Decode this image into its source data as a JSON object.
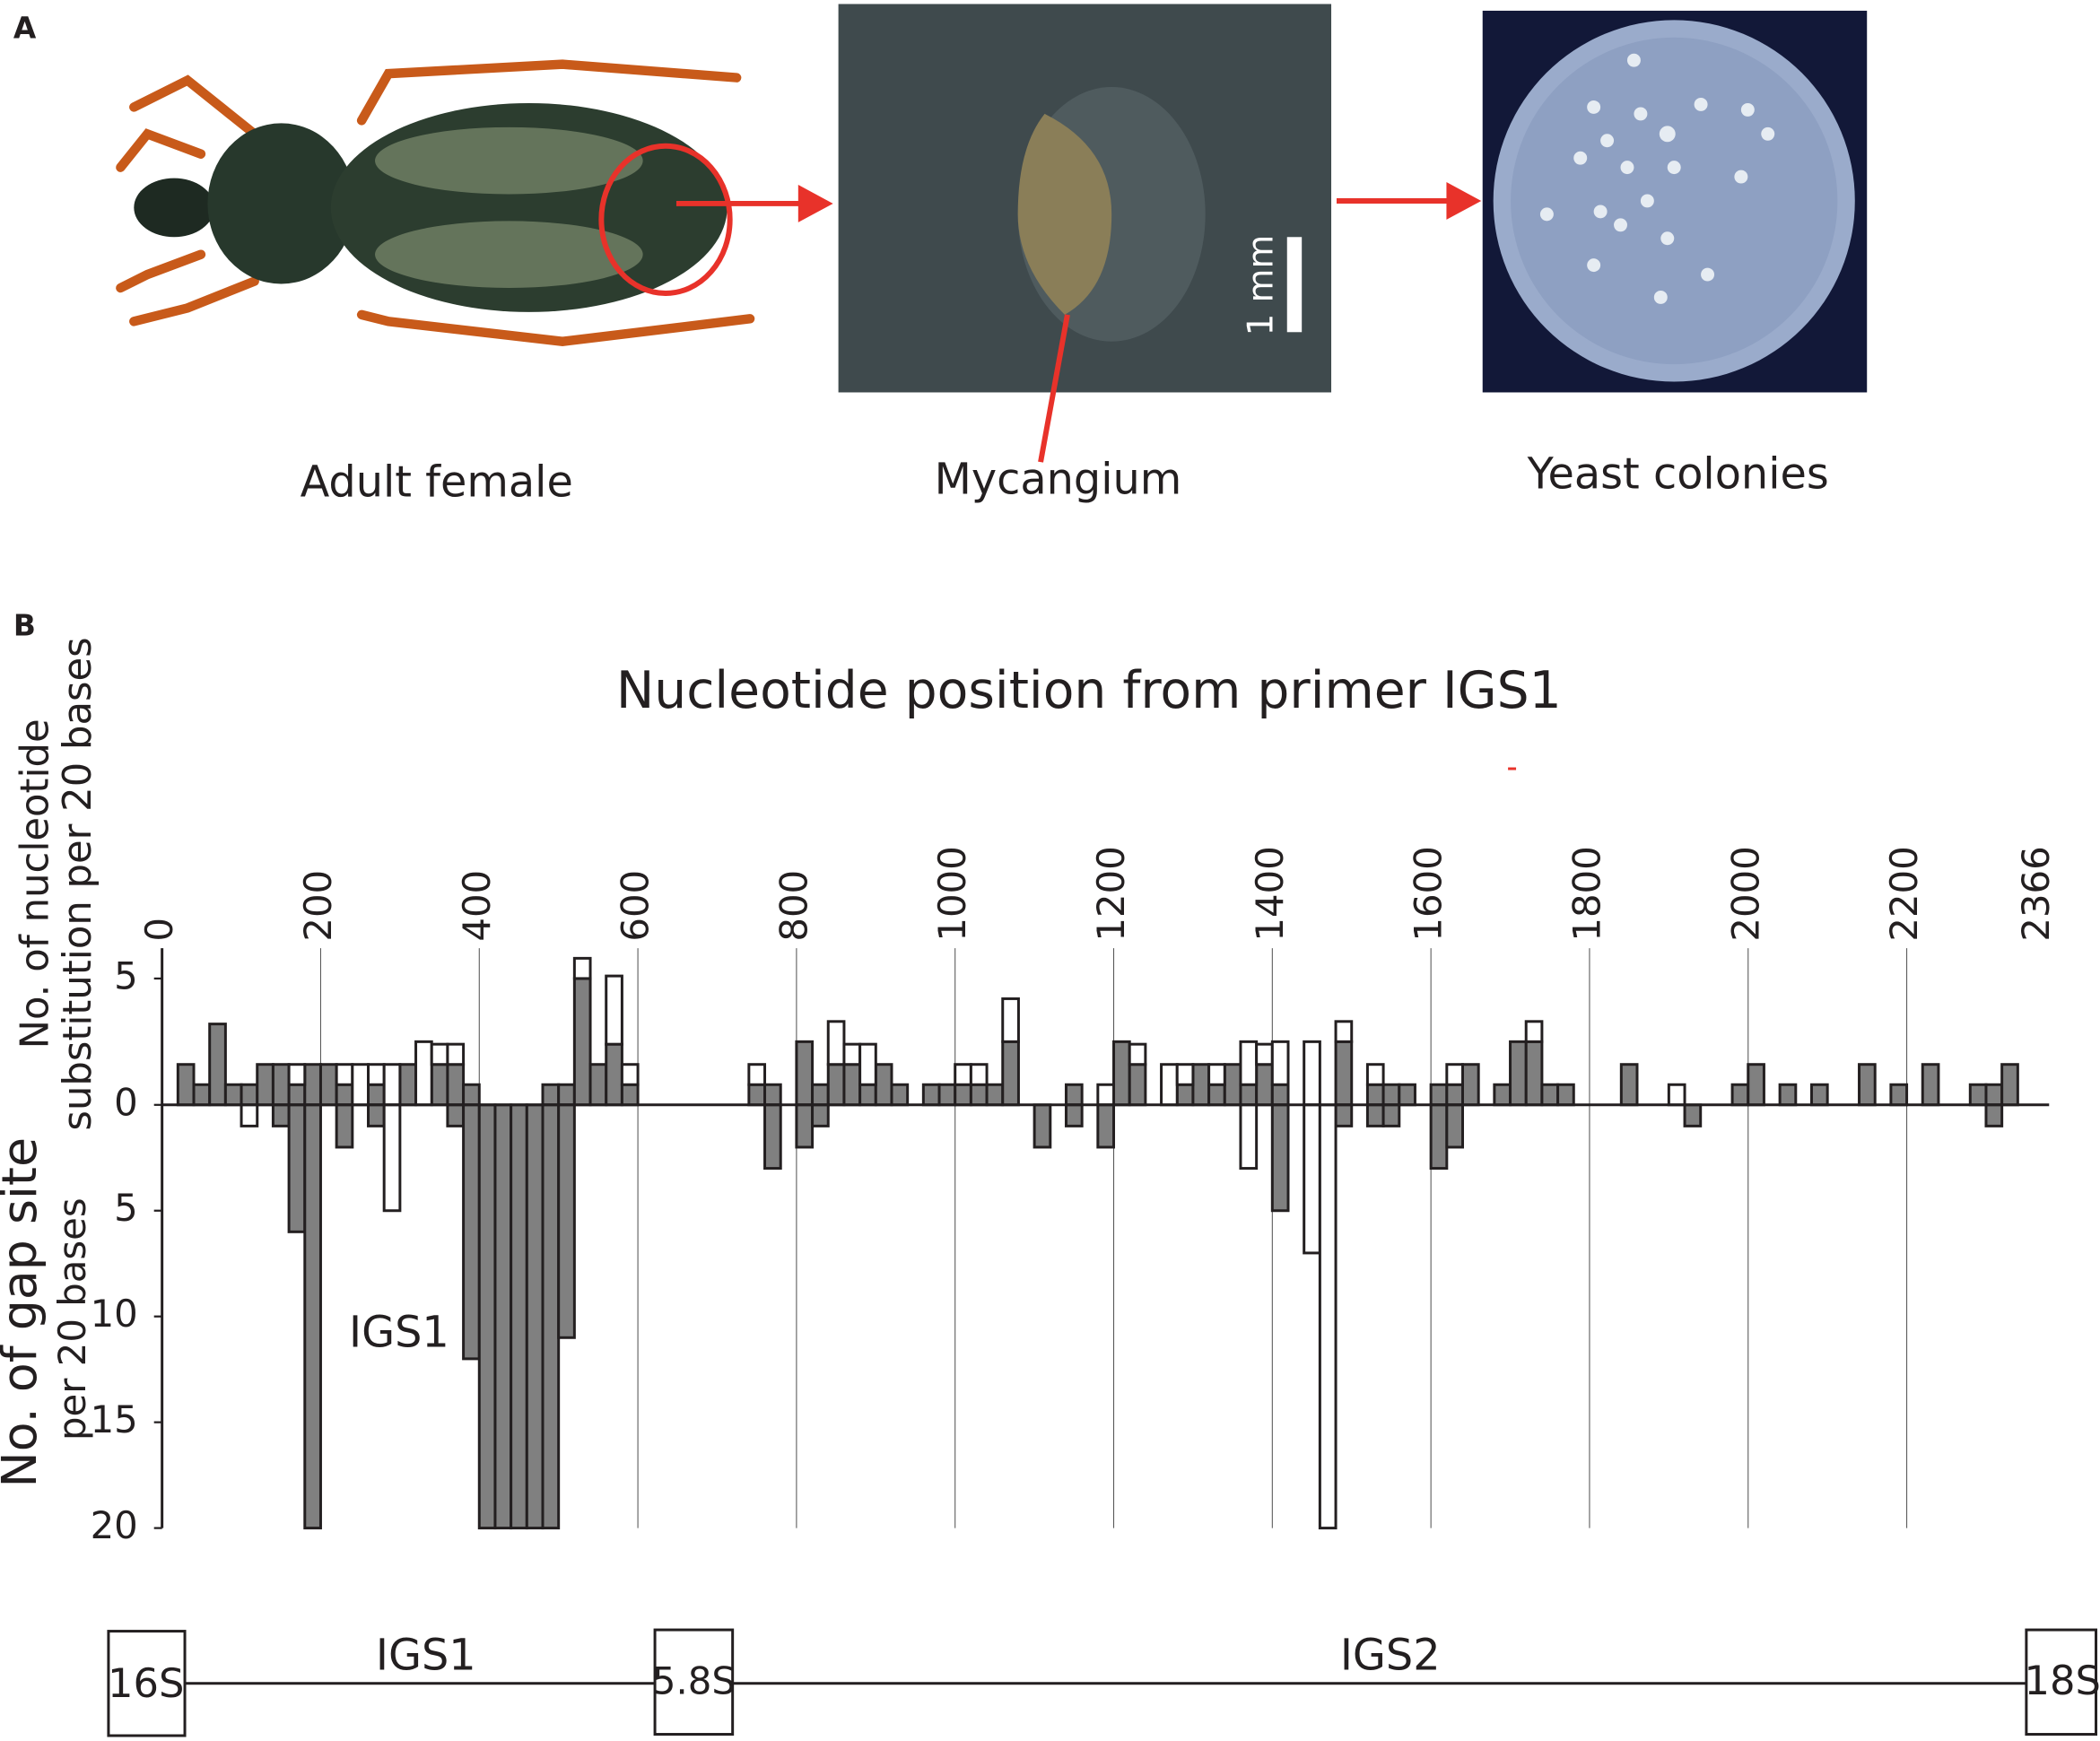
{
  "panel_a": {
    "label": "A",
    "captions": [
      "Adult female",
      "Mycangium",
      "Yeast colonies"
    ],
    "scale_bar": "1 mm"
  },
  "chart_data": {
    "type": "bar",
    "panel_label": "B",
    "title": "Nucleotide position from primer IGS1",
    "ylabel": [
      "No. of nucleotide",
      "substitution per 20 bases"
    ],
    "y2label": [
      "No. of gap site",
      "per 20 bases"
    ],
    "annotation": "IGS1",
    "bin_width": 20,
    "xlim": [
      0,
      2366
    ],
    "xticks": [
      0,
      200,
      400,
      600,
      800,
      1000,
      1200,
      1400,
      1600,
      1800,
      2000,
      2200,
      2366
    ],
    "ylim": [
      0,
      6.2
    ],
    "yticks": [
      0,
      5
    ],
    "y2lim": [
      0,
      20
    ],
    "y2ticks": [
      5,
      10,
      15,
      20
    ],
    "grid": true,
    "x": [
      20,
      40,
      60,
      80,
      100,
      120,
      140,
      160,
      180,
      200,
      220,
      240,
      260,
      280,
      300,
      320,
      340,
      360,
      380,
      400,
      420,
      440,
      460,
      480,
      500,
      520,
      540,
      560,
      580,
      740,
      760,
      800,
      820,
      840,
      860,
      880,
      900,
      920,
      960,
      980,
      1000,
      1020,
      1040,
      1060,
      1100,
      1140,
      1180,
      1200,
      1220,
      1260,
      1280,
      1300,
      1320,
      1340,
      1360,
      1380,
      1400,
      1440,
      1460,
      1480,
      1520,
      1540,
      1560,
      1600,
      1620,
      1640,
      1680,
      1700,
      1720,
      1740,
      1760,
      1840,
      1900,
      1920,
      1980,
      2000,
      2040,
      2080,
      2140,
      2180,
      2220,
      2280,
      2300,
      2320
    ],
    "series": [
      {
        "color": "#808080",
        "values": [
          1.6,
          0.8,
          3.2,
          0.8,
          0.8,
          1.6,
          1.6,
          0.8,
          1.6,
          1.6,
          0.8,
          null,
          0.8,
          null,
          1.6,
          null,
          1.6,
          1.6,
          0.8,
          null,
          null,
          null,
          null,
          0.8,
          0.8,
          5,
          1.6,
          2.4,
          0.8,
          0.8,
          0.8,
          2.5,
          0.8,
          1.6,
          1.6,
          0.8,
          1.6,
          0.8,
          0.8,
          0.8,
          0.8,
          0.8,
          0.8,
          2.5,
          null,
          0.8,
          null,
          2.5,
          1.6,
          null,
          0.8,
          1.6,
          0.8,
          1.6,
          0.8,
          1.6,
          0.8,
          null,
          null,
          2.5,
          0.8,
          0.8,
          0.8,
          0.8,
          0.8,
          1.6,
          0.8,
          2.5,
          2.5,
          0.8,
          0.8,
          1.6,
          null,
          null,
          0.8,
          1.6,
          0.8,
          0.8,
          1.6,
          0.8,
          1.6,
          0.8,
          0.8,
          1.6
        ]
      },
      {
        "color": "#ffffff",
        "values": [
          null,
          null,
          null,
          null,
          null,
          null,
          null,
          0.8,
          null,
          null,
          0.8,
          1.6,
          0.8,
          1.6,
          null,
          2.5,
          0.8,
          0.8,
          null,
          null,
          null,
          null,
          null,
          null,
          null,
          0.8,
          null,
          2.7,
          0.8,
          0.8,
          null,
          null,
          null,
          1.7,
          0.8,
          1.6,
          null,
          null,
          null,
          null,
          0.8,
          0.8,
          null,
          1.7,
          null,
          null,
          0.8,
          null,
          0.8,
          1.6,
          0.8,
          null,
          0.8,
          null,
          1.7,
          0.8,
          1.7,
          2.5,
          null,
          0.8,
          0.8,
          null,
          null,
          null,
          0.8,
          null,
          null,
          null,
          0.8,
          null,
          null,
          null,
          0.8,
          null,
          null,
          null,
          null,
          null,
          null,
          null,
          null,
          null,
          null,
          null
        ]
      },
      {
        "color": "#808080",
        "axis": "y2",
        "values": [
          null,
          null,
          null,
          null,
          null,
          null,
          1,
          6,
          20,
          null,
          2,
          null,
          1,
          null,
          null,
          null,
          null,
          1,
          12,
          20,
          20,
          20,
          20,
          20,
          11,
          null,
          null,
          null,
          null,
          null,
          3,
          2,
          1,
          null,
          null,
          null,
          null,
          null,
          null,
          null,
          null,
          null,
          null,
          null,
          2,
          1,
          2,
          null,
          null,
          null,
          null,
          null,
          null,
          null,
          null,
          null,
          5,
          null,
          null,
          1,
          1,
          1,
          null,
          3,
          2,
          null,
          null,
          null,
          null,
          null,
          null,
          null,
          null,
          1,
          null,
          null,
          null,
          null,
          null,
          null,
          null,
          null,
          1,
          null
        ]
      },
      {
        "color": "#ffffff",
        "axis": "y2",
        "values": [
          null,
          null,
          null,
          null,
          1,
          null,
          null,
          null,
          null,
          null,
          null,
          null,
          null,
          5,
          null,
          null,
          null,
          null,
          null,
          null,
          null,
          null,
          null,
          null,
          null,
          null,
          null,
          null,
          null,
          null,
          null,
          null,
          null,
          null,
          null,
          null,
          null,
          null,
          null,
          null,
          null,
          null,
          null,
          null,
          null,
          null,
          null,
          null,
          null,
          null,
          null,
          null,
          null,
          null,
          3,
          null,
          null,
          7,
          20,
          null,
          null,
          null,
          null,
          null,
          null,
          null,
          null,
          null,
          null,
          null,
          null,
          null,
          null,
          null,
          null,
          null,
          null,
          null,
          null,
          null,
          null,
          null,
          null,
          null
        ]
      }
    ]
  },
  "gene_map": {
    "boxes": [
      "16S",
      "5.8S",
      "18S"
    ],
    "regions": [
      "IGS1",
      "IGS2"
    ]
  }
}
